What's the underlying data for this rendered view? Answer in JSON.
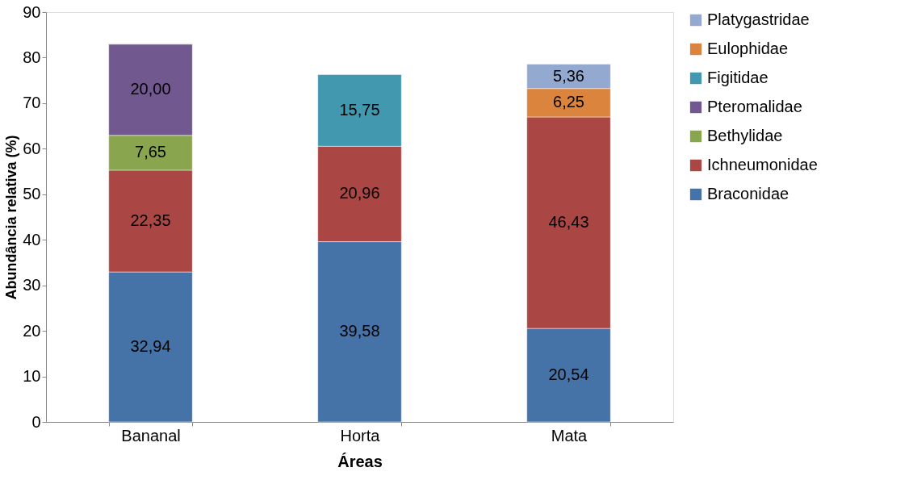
{
  "chart_data": {
    "type": "bar",
    "stacked": true,
    "xlabel": "Áreas",
    "ylabel": "Abundância relativa (%)",
    "categories": [
      "Bananal",
      "Horta",
      "Mata"
    ],
    "series": [
      {
        "name": "Braconidae",
        "color": "#4572a7",
        "values": [
          32.94,
          39.58,
          20.54
        ],
        "value_labels": [
          "32,94",
          "39,58",
          "20,54"
        ]
      },
      {
        "name": "Ichneumonidae",
        "color": "#aa4643",
        "values": [
          22.35,
          20.96,
          46.43
        ],
        "value_labels": [
          "22,35",
          "20,96",
          "46,43"
        ]
      },
      {
        "name": "Bethylidae",
        "color": "#89a54e",
        "values": [
          7.65,
          null,
          null
        ],
        "value_labels": [
          "7,65",
          null,
          null
        ]
      },
      {
        "name": "Pteromalidae",
        "color": "#71588f",
        "values": [
          20.0,
          null,
          null
        ],
        "value_labels": [
          "20,00",
          null,
          null
        ]
      },
      {
        "name": "Figitidae",
        "color": "#4198af",
        "values": [
          null,
          15.75,
          null
        ],
        "value_labels": [
          null,
          "15,75",
          null
        ]
      },
      {
        "name": "Eulophidae",
        "color": "#db843d",
        "values": [
          null,
          null,
          6.25
        ],
        "value_labels": [
          null,
          null,
          "6,25"
        ]
      },
      {
        "name": "Platygastridae",
        "color": "#93a9cf",
        "values": [
          null,
          null,
          5.36
        ],
        "value_labels": [
          null,
          null,
          "5,36"
        ]
      }
    ],
    "ylim": [
      0,
      90
    ],
    "yticks": [
      0,
      10,
      20,
      30,
      40,
      50,
      60,
      70,
      80,
      90
    ],
    "grid": false,
    "legend": "right"
  }
}
